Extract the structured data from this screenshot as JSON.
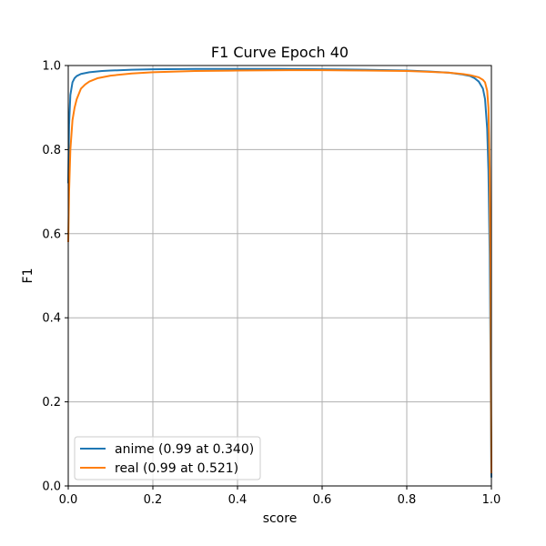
{
  "chart_data": {
    "type": "line",
    "title": "F1 Curve Epoch 40",
    "xlabel": "score",
    "ylabel": "F1",
    "xlim": [
      0.0,
      1.0
    ],
    "ylim": [
      0.0,
      1.0
    ],
    "grid": true,
    "legend_position": "bottom-left",
    "x_ticks": [
      "0.0",
      "0.2",
      "0.4",
      "0.6",
      "0.8",
      "1.0"
    ],
    "y_ticks": [
      "0.0",
      "0.2",
      "0.4",
      "0.6",
      "0.8",
      "1.0"
    ],
    "series": [
      {
        "name": "anime (0.99 at 0.340)",
        "color": "#1f77b4",
        "x": [
          0.0,
          0.002,
          0.005,
          0.01,
          0.015,
          0.02,
          0.03,
          0.05,
          0.08,
          0.1,
          0.15,
          0.2,
          0.3,
          0.34,
          0.4,
          0.5,
          0.6,
          0.7,
          0.8,
          0.85,
          0.9,
          0.93,
          0.95,
          0.96,
          0.97,
          0.98,
          0.985,
          0.99,
          0.993,
          0.996,
          0.998,
          1.0
        ],
        "y": [
          0.72,
          0.86,
          0.93,
          0.96,
          0.97,
          0.975,
          0.98,
          0.984,
          0.987,
          0.988,
          0.99,
          0.991,
          0.992,
          0.992,
          0.992,
          0.992,
          0.991,
          0.99,
          0.988,
          0.986,
          0.983,
          0.979,
          0.975,
          0.97,
          0.962,
          0.945,
          0.92,
          0.85,
          0.75,
          0.55,
          0.3,
          0.02
        ]
      },
      {
        "name": "real (0.99 at 0.521)",
        "color": "#ff7f0e",
        "x": [
          0.0,
          0.002,
          0.005,
          0.01,
          0.015,
          0.02,
          0.03,
          0.04,
          0.05,
          0.07,
          0.1,
          0.15,
          0.2,
          0.3,
          0.4,
          0.521,
          0.6,
          0.7,
          0.8,
          0.85,
          0.9,
          0.93,
          0.95,
          0.97,
          0.98,
          0.985,
          0.99,
          0.993,
          0.996,
          0.998,
          1.0
        ],
        "y": [
          0.58,
          0.7,
          0.8,
          0.87,
          0.9,
          0.92,
          0.945,
          0.955,
          0.962,
          0.97,
          0.976,
          0.981,
          0.984,
          0.987,
          0.988,
          0.989,
          0.989,
          0.988,
          0.987,
          0.985,
          0.983,
          0.98,
          0.977,
          0.972,
          0.966,
          0.96,
          0.94,
          0.9,
          0.75,
          0.5,
          0.03
        ]
      }
    ]
  }
}
